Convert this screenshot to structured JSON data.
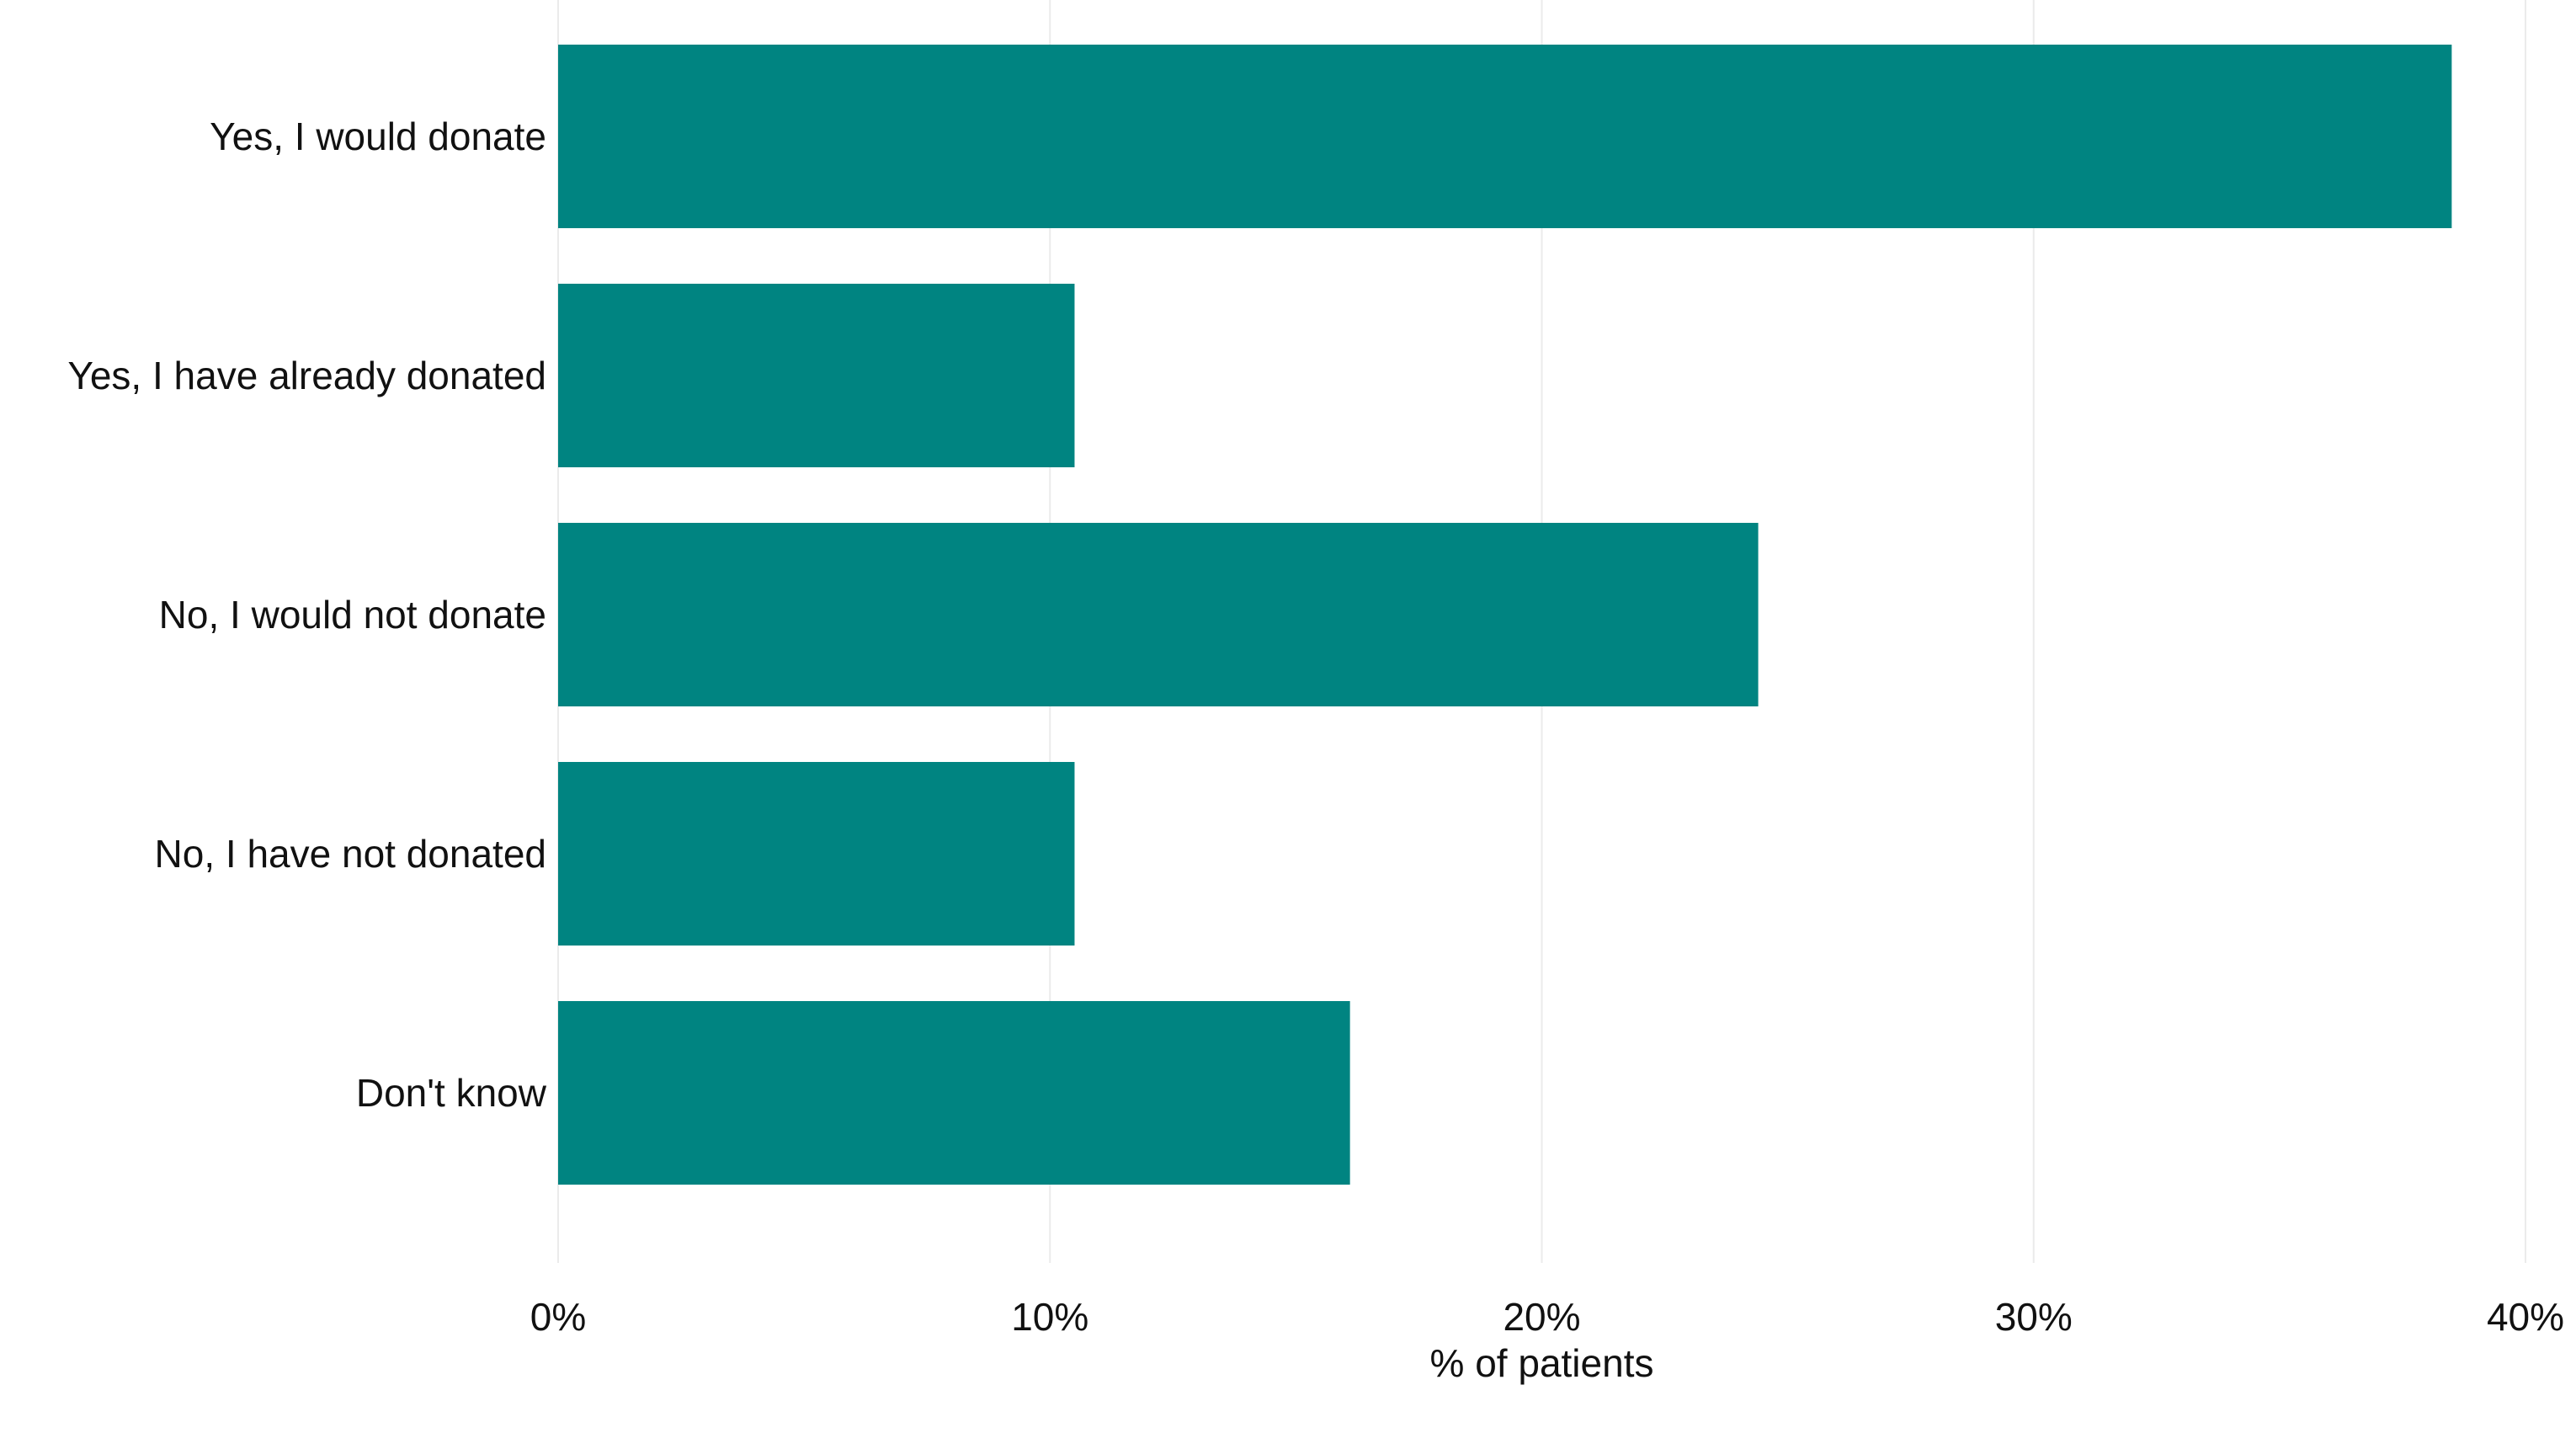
{
  "chart_data": {
    "type": "bar",
    "orientation": "horizontal",
    "categories": [
      "Yes, I would donate",
      "Yes, I have already donated",
      "No, I would not donate",
      "No, I have not donated",
      "Don't know"
    ],
    "values": [
      38.5,
      10.5,
      24.4,
      10.5,
      16.1
    ],
    "xlabel": "% of patients",
    "ylabel": "",
    "xlim": [
      0,
      40
    ],
    "ticks": [
      0,
      10,
      20,
      30,
      40
    ],
    "tick_labels": [
      "0%",
      "10%",
      "20%",
      "30%",
      "40%"
    ],
    "grid": "vertical",
    "legend": "none",
    "bar_color": "#008481",
    "grid_color": "#ebebeb"
  }
}
